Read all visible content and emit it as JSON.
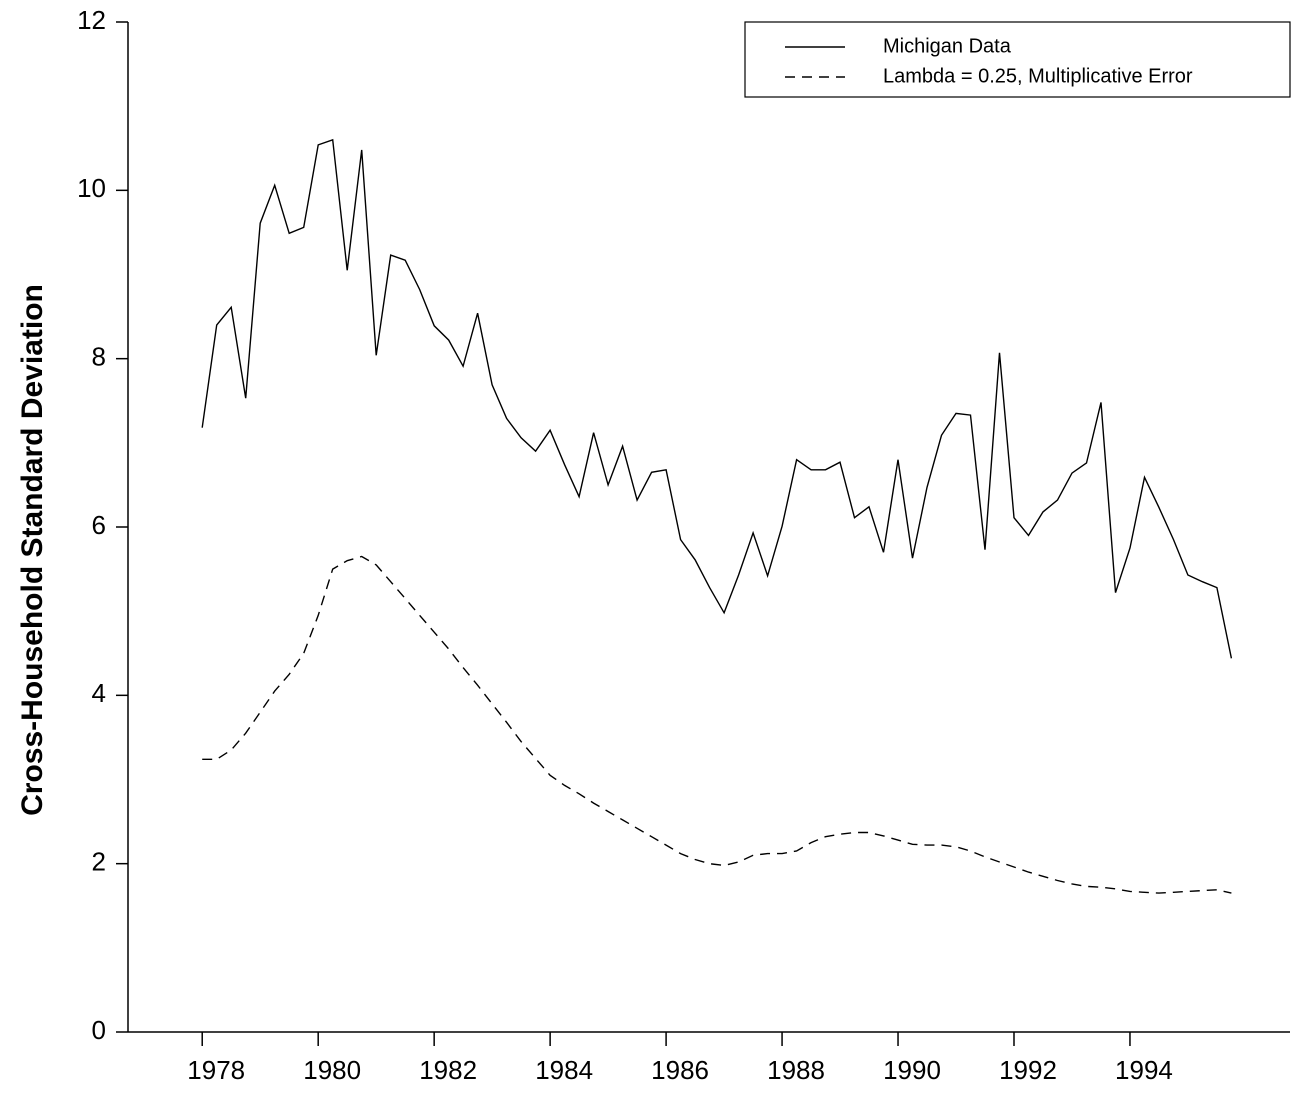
{
  "chart_data": {
    "type": "line",
    "y_label": "Cross-Household Standard Deviation",
    "x": [
      1978,
      1978.25,
      1978.5,
      1978.75,
      1979,
      1979.25,
      1979.5,
      1979.75,
      1980,
      1980.25,
      1980.5,
      1980.75,
      1981,
      1981.25,
      1981.5,
      1981.75,
      1982,
      1982.25,
      1982.5,
      1982.75,
      1983,
      1983.25,
      1983.5,
      1983.75,
      1984,
      1984.25,
      1984.5,
      1984.75,
      1985,
      1985.25,
      1985.5,
      1985.75,
      1986,
      1986.25,
      1986.5,
      1986.75,
      1987,
      1987.25,
      1987.5,
      1987.75,
      1988,
      1988.25,
      1988.5,
      1988.75,
      1989,
      1989.25,
      1989.5,
      1989.75,
      1990,
      1990.25,
      1990.5,
      1990.75,
      1991,
      1991.25,
      1991.5,
      1991.75,
      1992,
      1992.25,
      1992.5,
      1992.75,
      1993,
      1993.25,
      1993.5,
      1993.75,
      1994,
      1994.25,
      1994.5,
      1994.75,
      1995,
      1995.25,
      1995.5,
      1995.75
    ],
    "series": [
      {
        "name": "Michigan Data",
        "color": "#000000",
        "dash": "solid",
        "values": [
          7.18,
          8.4,
          8.61,
          7.53,
          9.61,
          10.06,
          9.49,
          9.56,
          10.54,
          10.6,
          9.05,
          10.48,
          8.04,
          9.23,
          9.17,
          8.82,
          8.39,
          8.22,
          7.91,
          8.54,
          7.69,
          7.29,
          7.06,
          6.9,
          7.15,
          6.74,
          6.36,
          7.12,
          6.5,
          6.96,
          6.32,
          6.65,
          6.68,
          5.85,
          5.61,
          5.28,
          4.98,
          5.43,
          5.93,
          5.42,
          6.01,
          6.8,
          6.68,
          6.68,
          6.77,
          6.11,
          6.24,
          5.7,
          6.8,
          5.63,
          6.47,
          7.09,
          7.35,
          7.33,
          5.73,
          8.07,
          6.11,
          5.9,
          6.18,
          6.32,
          6.64,
          6.76,
          7.48,
          5.22,
          5.75,
          6.59,
          6.23,
          5.85,
          5.43,
          5.35,
          5.28,
          4.44
        ]
      },
      {
        "name": "Lambda = 0.25, Multiplicative Error",
        "color": "#000000",
        "dash": "dashed",
        "values": [
          3.24,
          3.24,
          3.35,
          3.55,
          3.8,
          4.05,
          4.25,
          4.5,
          4.95,
          5.5,
          5.6,
          5.65,
          5.55,
          5.35,
          5.15,
          4.95,
          4.75,
          4.55,
          4.33,
          4.12,
          3.9,
          3.68,
          3.45,
          3.25,
          3.05,
          2.93,
          2.83,
          2.72,
          2.62,
          2.52,
          2.42,
          2.32,
          2.22,
          2.12,
          2.05,
          2.0,
          1.98,
          2.02,
          2.1,
          2.12,
          2.12,
          2.15,
          2.25,
          2.32,
          2.35,
          2.37,
          2.37,
          2.33,
          2.28,
          2.23,
          2.22,
          2.22,
          2.2,
          2.15,
          2.08,
          2.02,
          1.96,
          1.9,
          1.85,
          1.8,
          1.76,
          1.73,
          1.72,
          1.7,
          1.67,
          1.66,
          1.65,
          1.66,
          1.67,
          1.68,
          1.69,
          1.65
        ]
      }
    ],
    "xlim": [
      1976.72,
      1996.76
    ],
    "xticks": [
      1978,
      1980,
      1982,
      1984,
      1986,
      1988,
      1990,
      1992,
      1994
    ],
    "ylim": [
      0,
      12
    ],
    "yticks": [
      0,
      2,
      4,
      6,
      8,
      10,
      12
    ],
    "legend": "upper right"
  }
}
